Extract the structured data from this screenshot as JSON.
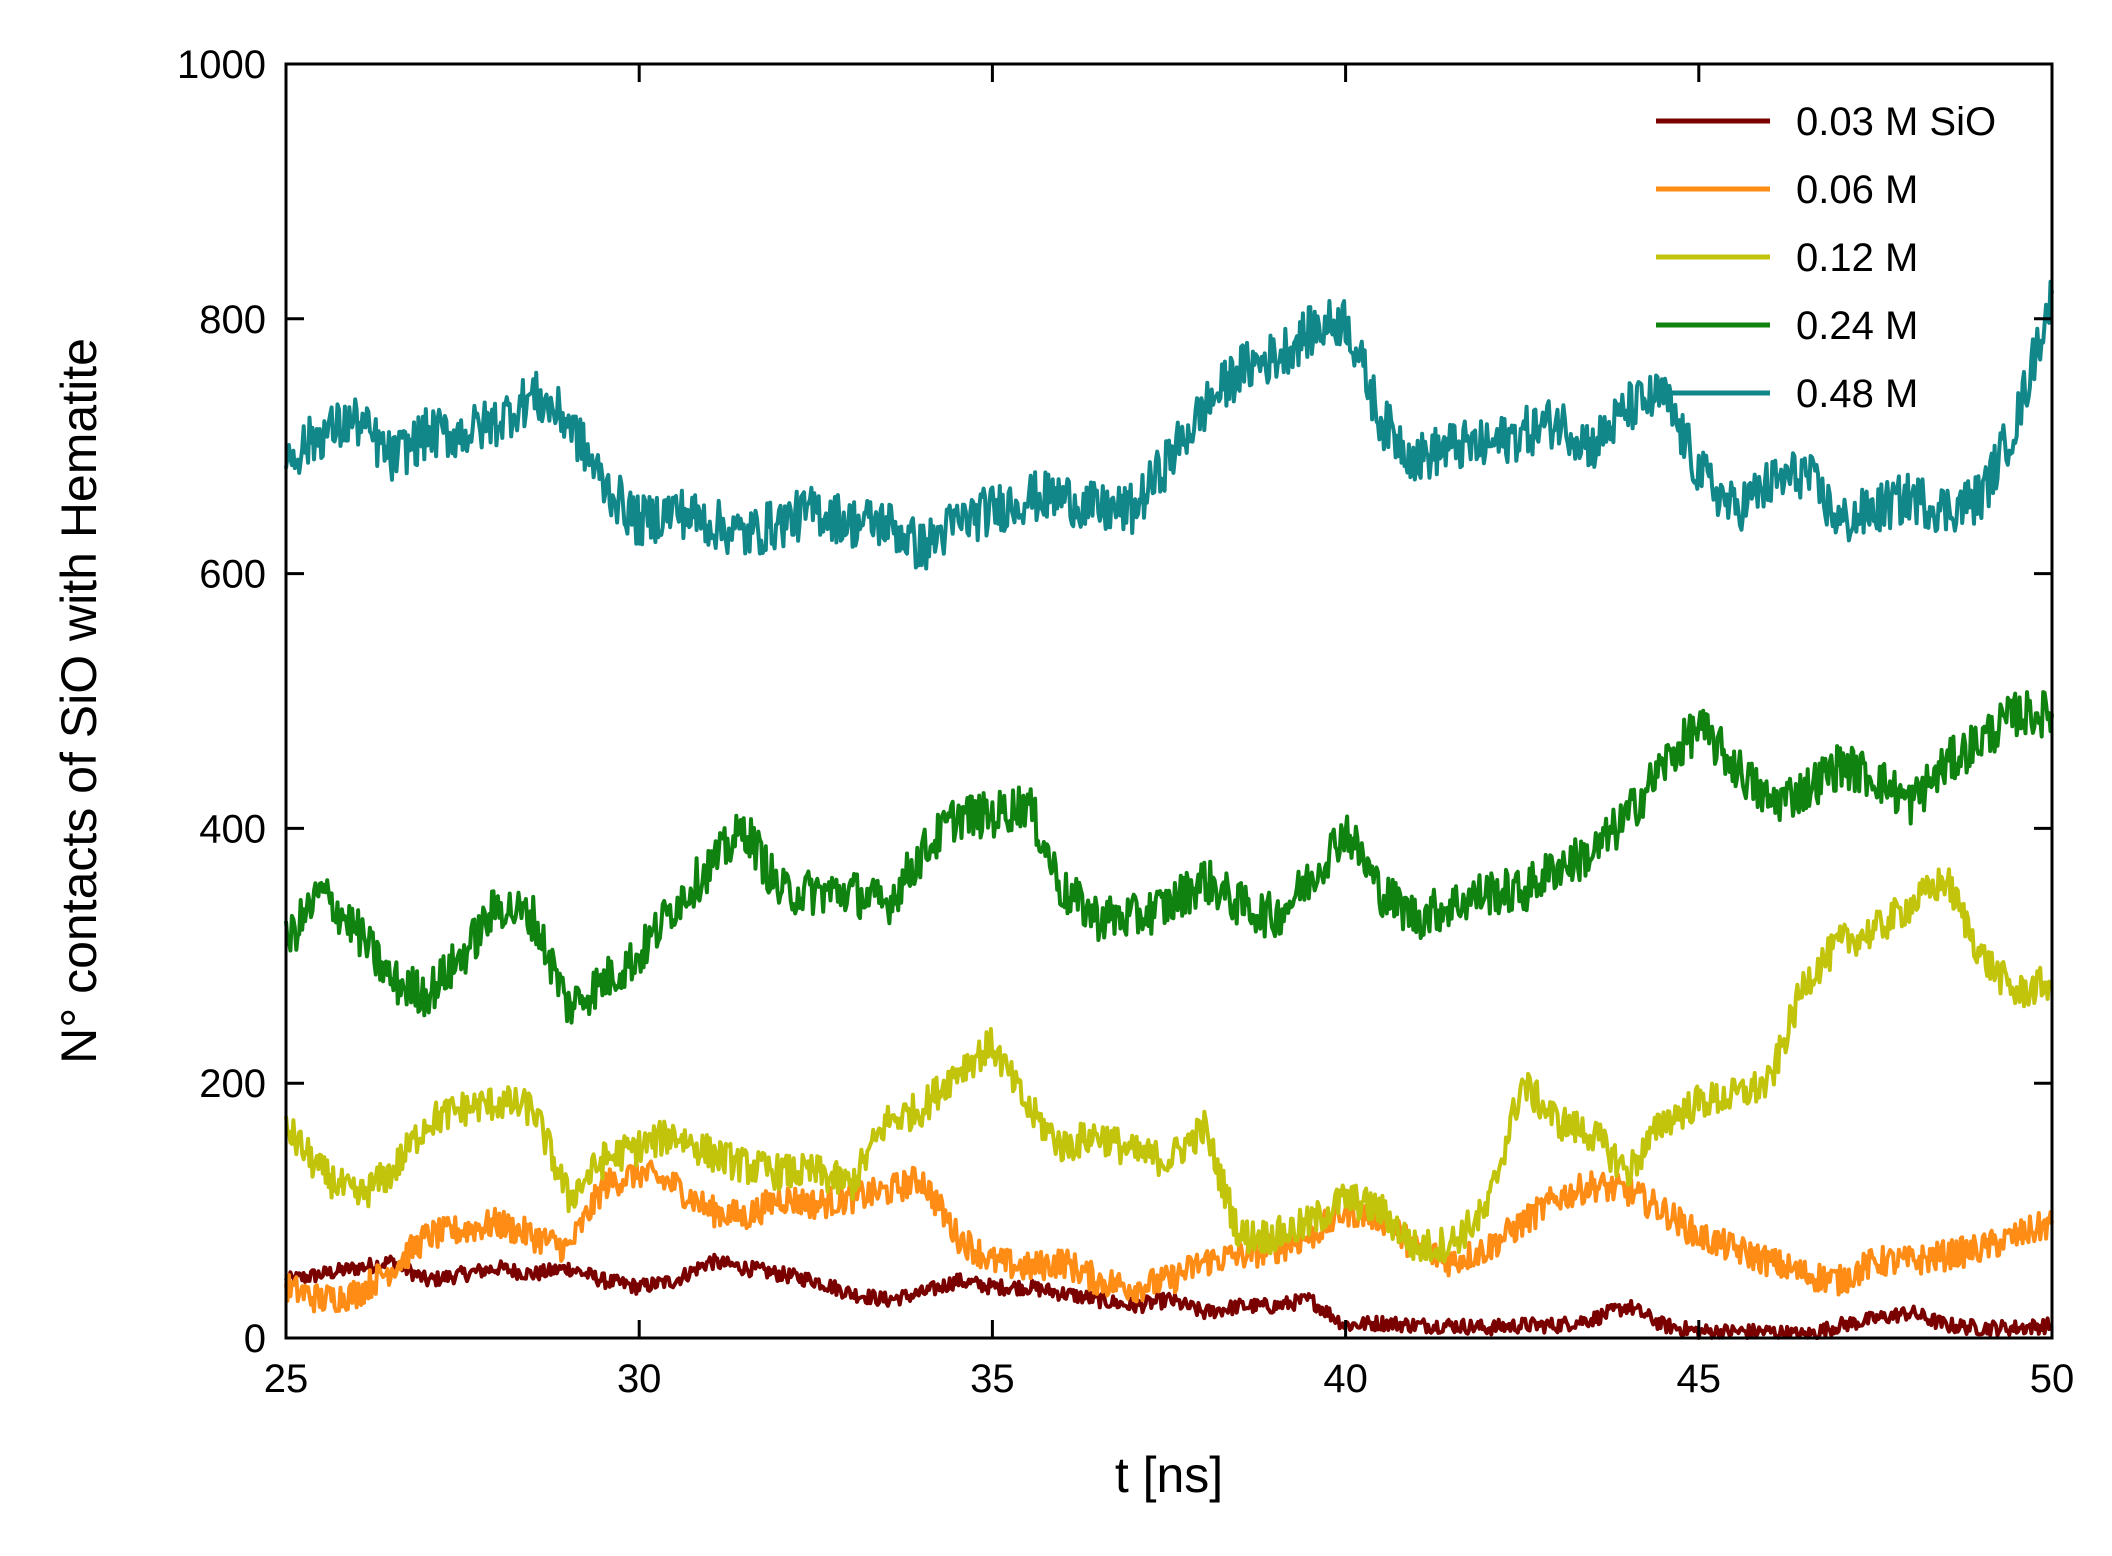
{
  "chart_data": {
    "type": "line",
    "xlabel": "t [ns]",
    "ylabel": "N° contacts of SiO with Hematite",
    "xlim": [
      25,
      50
    ],
    "ylim": [
      0,
      1000
    ],
    "xticks": [
      25,
      30,
      35,
      40,
      45,
      50
    ],
    "yticks": [
      0,
      200,
      400,
      600,
      800,
      1000
    ],
    "grid": false,
    "legend_position": "top-right",
    "series": [
      {
        "name": "0.03 M SiO",
        "color": "#7a0000",
        "x": [
          25,
          25.5,
          26,
          26.5,
          27,
          27.5,
          28,
          28.5,
          29,
          29.5,
          30,
          30.5,
          31,
          31.5,
          32,
          32.5,
          33,
          33.5,
          34,
          34.5,
          35,
          35.5,
          36,
          36.5,
          37,
          37.5,
          38,
          38.5,
          39,
          39.5,
          40,
          40.5,
          41,
          41.5,
          42,
          42.5,
          43,
          43.5,
          44,
          44.5,
          45,
          45.5,
          46,
          46.5,
          47,
          47.5,
          48,
          48.5,
          49,
          49.5,
          50
        ],
        "y": [
          45,
          50,
          55,
          60,
          45,
          50,
          55,
          50,
          55,
          45,
          40,
          45,
          60,
          55,
          50,
          45,
          35,
          30,
          35,
          45,
          40,
          40,
          35,
          30,
          25,
          30,
          20,
          25,
          25,
          30,
          10,
          12,
          10,
          10,
          8,
          10,
          10,
          15,
          25,
          10,
          5,
          5,
          5,
          2,
          10,
          15,
          20,
          10,
          8,
          8,
          10
        ]
      },
      {
        "name": "0.06 M",
        "color": "#ff8c14",
        "x": [
          25,
          25.5,
          26,
          26.5,
          27,
          27.5,
          28,
          28.5,
          29,
          29.5,
          30,
          30.5,
          31,
          31.5,
          32,
          32.5,
          33,
          33.5,
          34,
          34.5,
          35,
          35.5,
          36,
          36.5,
          37,
          37.5,
          38,
          38.5,
          39,
          39.5,
          40,
          40.5,
          41,
          41.5,
          42,
          42.5,
          43,
          43.5,
          44,
          44.5,
          45,
          45.5,
          46,
          46.5,
          47,
          47.5,
          48,
          48.5,
          49,
          49.5,
          50
        ],
        "y": [
          40,
          30,
          35,
          55,
          80,
          85,
          90,
          80,
          70,
          120,
          130,
          120,
          100,
          95,
          110,
          105,
          110,
          115,
          125,
          80,
          60,
          55,
          60,
          45,
          40,
          45,
          60,
          65,
          70,
          80,
          100,
          95,
          70,
          60,
          70,
          90,
          110,
          120,
          115,
          100,
          80,
          70,
          60,
          50,
          45,
          60,
          60,
          65,
          70,
          80,
          90
        ]
      },
      {
        "name": "0.12 M",
        "color": "#c2c40c",
        "x": [
          25,
          25.5,
          26,
          26.5,
          27,
          27.5,
          28,
          28.5,
          29,
          29.5,
          30,
          30.5,
          31,
          31.5,
          32,
          32.5,
          33,
          33.5,
          34,
          34.5,
          35,
          35.5,
          36,
          36.5,
          37,
          37.5,
          38,
          38.5,
          39,
          39.5,
          40,
          40.5,
          41,
          41.5,
          42,
          42.5,
          43,
          43.5,
          44,
          44.5,
          45,
          45.5,
          46,
          46.5,
          47,
          47.5,
          48,
          48.5,
          49,
          49.5,
          50
        ],
        "y": [
          165,
          130,
          110,
          130,
          170,
          180,
          185,
          180,
          110,
          140,
          150,
          160,
          145,
          135,
          130,
          130,
          120,
          170,
          180,
          210,
          230,
          180,
          150,
          160,
          145,
          140,
          165,
          80,
          80,
          90,
          110,
          100,
          70,
          75,
          100,
          200,
          170,
          160,
          130,
          170,
          185,
          190,
          200,
          280,
          310,
          320,
          340,
          360,
          300,
          270,
          280
        ]
      },
      {
        "name": "0.24 M",
        "color": "#108210",
        "x": [
          25,
          25.5,
          26,
          26.5,
          27,
          27.5,
          28,
          28.5,
          29,
          29.5,
          30,
          30.5,
          31,
          31.5,
          32,
          32.5,
          33,
          33.5,
          34,
          34.5,
          35,
          35.5,
          36,
          36.5,
          37,
          37.5,
          38,
          38.5,
          39,
          39.5,
          40,
          40.5,
          41,
          41.5,
          42,
          42.5,
          43,
          43.5,
          44,
          44.5,
          45,
          45.5,
          46,
          46.5,
          47,
          47.5,
          48,
          48.5,
          49,
          49.5,
          50
        ],
        "y": [
          310,
          350,
          320,
          280,
          270,
          300,
          340,
          330,
          260,
          280,
          300,
          340,
          370,
          400,
          350,
          350,
          350,
          340,
          380,
          410,
          410,
          420,
          350,
          330,
          330,
          340,
          360,
          340,
          330,
          360,
          400,
          350,
          330,
          340,
          350,
          350,
          370,
          380,
          410,
          450,
          480,
          450,
          420,
          430,
          450,
          440,
          420,
          450,
          470,
          490,
          490
        ]
      },
      {
        "name": "0.48 M",
        "color": "#11878a",
        "x": [
          25,
          25.5,
          26,
          26.5,
          27,
          27.5,
          28,
          28.5,
          29,
          29.5,
          30,
          30.5,
          31,
          31.5,
          32,
          32.5,
          33,
          33.5,
          34,
          34.5,
          35,
          35.5,
          36,
          36.5,
          37,
          37.5,
          38,
          38.5,
          39,
          39.5,
          40,
          40.5,
          41,
          41.5,
          42,
          42.5,
          43,
          43.5,
          44,
          44.5,
          45,
          45.5,
          46,
          46.5,
          47,
          47.5,
          48,
          48.5,
          49,
          49.5,
          50
        ],
        "y": [
          690,
          710,
          720,
          690,
          710,
          710,
          720,
          740,
          720,
          670,
          640,
          650,
          640,
          630,
          640,
          650,
          640,
          640,
          620,
          640,
          650,
          660,
          660,
          650,
          650,
          690,
          730,
          760,
          770,
          790,
          800,
          720,
          690,
          700,
          700,
          710,
          720,
          700,
          730,
          740,
          680,
          650,
          670,
          680,
          640,
          650,
          660,
          650,
          660,
          720,
          820
        ]
      }
    ]
  }
}
